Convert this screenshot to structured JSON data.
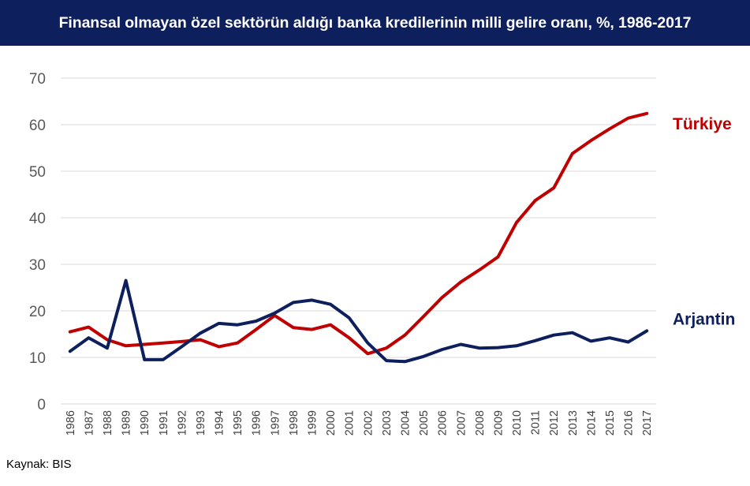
{
  "chart_data": {
    "type": "line",
    "title": "Finansal olmayan özel sektörün aldığı banka kredilerinin milli gelire oranı, %, 1986-2017",
    "xlabel": "",
    "ylabel": "",
    "ylim": [
      0,
      70
    ],
    "yticks": [
      0,
      10,
      20,
      30,
      40,
      50,
      60,
      70
    ],
    "grid": true,
    "x": [
      "1986",
      "1987",
      "1988",
      "1989",
      "1990",
      "1991",
      "1992",
      "1993",
      "1994",
      "1995",
      "1996",
      "1997",
      "1998",
      "1999",
      "2000",
      "2001",
      "2002",
      "2003",
      "2004",
      "2005",
      "2006",
      "2007",
      "2008",
      "2009",
      "2010",
      "2011",
      "2012",
      "2013",
      "2014",
      "2015",
      "2016",
      "2017"
    ],
    "series": [
      {
        "name": "Türkiye",
        "color": "#c00000",
        "values": [
          15.5,
          16.5,
          13.8,
          12.5,
          12.8,
          13.1,
          13.4,
          13.8,
          12.3,
          13.1,
          16.0,
          19.0,
          16.4,
          16.0,
          17.0,
          14.2,
          10.8,
          12.0,
          14.8,
          18.8,
          22.9,
          26.2,
          28.8,
          31.6,
          39.0,
          43.7,
          46.4,
          53.8,
          56.6,
          59.1,
          61.4,
          62.4
        ]
      },
      {
        "name": "Arjantin",
        "color": "#0d1f5c",
        "values": [
          11.3,
          14.2,
          12.0,
          26.5,
          9.5,
          9.5,
          12.3,
          15.2,
          17.3,
          17.0,
          17.8,
          19.5,
          21.8,
          22.3,
          21.4,
          18.5,
          13.1,
          9.3,
          9.1,
          10.2,
          11.7,
          12.8,
          12.0,
          12.1,
          12.5,
          13.6,
          14.8,
          15.3,
          13.5,
          14.2,
          13.3,
          15.7
        ]
      }
    ]
  },
  "source": "Kaynak: BIS"
}
